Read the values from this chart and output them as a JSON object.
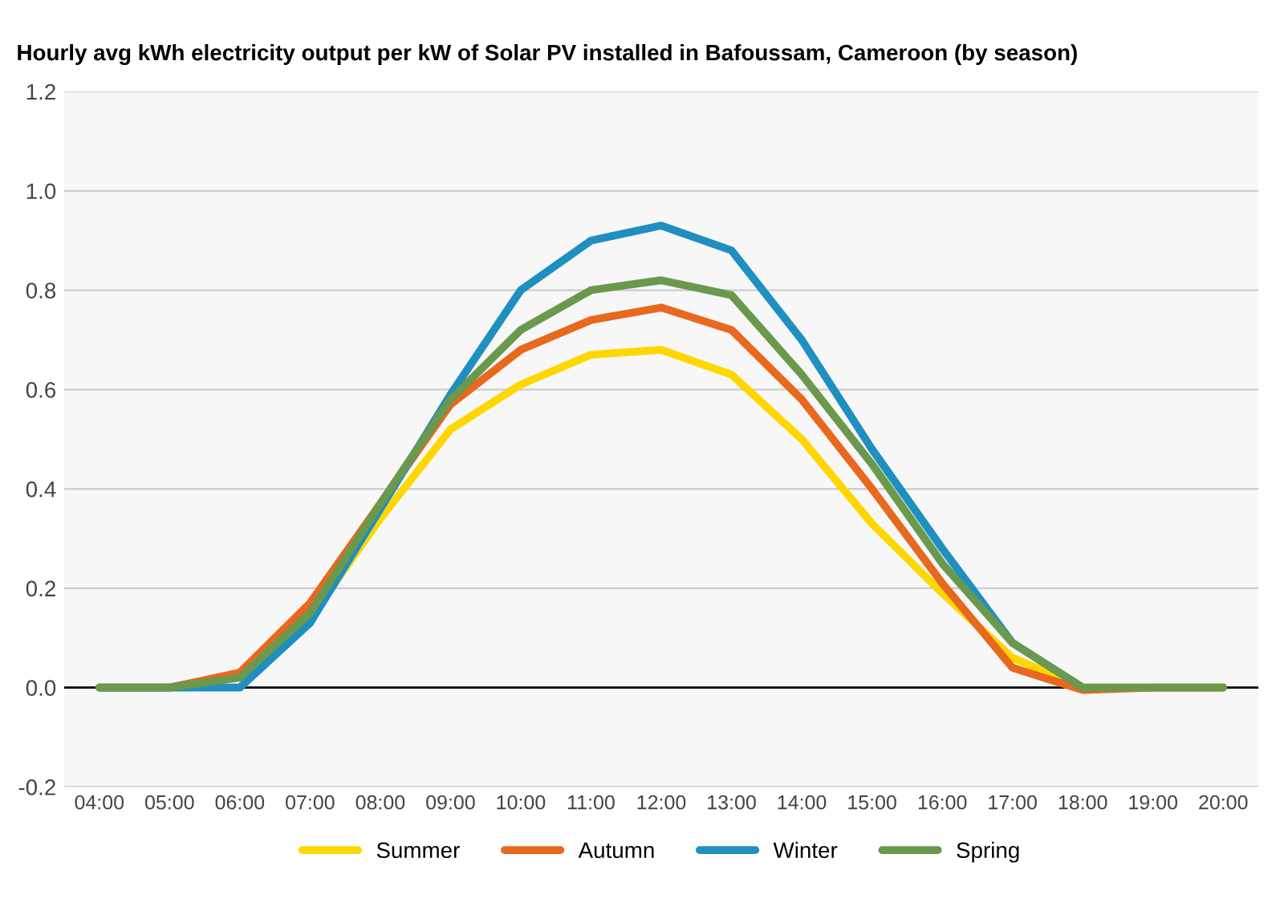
{
  "chart_data": {
    "type": "line",
    "title": "Hourly avg kWh electricity output per kW of Solar PV installed in Bafoussam, Cameroon (by season)",
    "x": [
      4,
      5,
      6,
      7,
      8,
      9,
      10,
      11,
      12,
      13,
      14,
      15,
      16,
      17,
      18,
      19,
      20
    ],
    "series": [
      {
        "name": "Summer",
        "color": "#ffd700",
        "values": [
          null,
          null,
          0.02,
          0.14,
          0.34,
          0.52,
          0.61,
          0.67,
          0.68,
          0.63,
          0.5,
          0.33,
          0.19,
          0.06,
          0.0,
          0,
          0
        ]
      },
      {
        "name": "Autumn",
        "color": "#e8681e",
        "values": [
          0,
          0,
          0.03,
          0.17,
          0.37,
          0.57,
          0.68,
          0.74,
          0.765,
          0.72,
          0.58,
          0.4,
          0.21,
          0.04,
          -0.005,
          0,
          0
        ]
      },
      {
        "name": "Winter",
        "color": "#1f8fc0",
        "values": [
          0,
          0,
          0.0,
          0.13,
          0.36,
          0.59,
          0.8,
          0.9,
          0.93,
          0.88,
          0.7,
          0.48,
          0.28,
          0.09,
          0.0,
          null,
          null
        ]
      },
      {
        "name": "Spring",
        "color": "#6a994e",
        "values": [
          0,
          0,
          0.02,
          0.15,
          0.37,
          0.58,
          0.72,
          0.8,
          0.82,
          0.79,
          0.63,
          0.45,
          0.25,
          0.09,
          0.0,
          0,
          0
        ]
      }
    ],
    "ylim": [
      -0.2,
      1.2
    ],
    "yticks": [
      -0.2,
      {
        "value": 0,
        "label": "0.0"
      },
      0.2,
      0.4,
      0.6,
      0.8,
      {
        "value": 1,
        "label": "1.0"
      },
      1.2
    ],
    "xlim": [
      3.5,
      20.5
    ],
    "xticks": [
      {
        "value": 4,
        "label": "04:00"
      },
      {
        "value": 5,
        "label": "05:00"
      },
      {
        "value": 6,
        "label": "06:00"
      },
      {
        "value": 7,
        "label": "07:00"
      },
      {
        "value": 8,
        "label": "08:00"
      },
      {
        "value": 9,
        "label": "09:00"
      },
      {
        "value": 10,
        "label": "10:00"
      },
      {
        "value": 11,
        "label": "11:00"
      },
      {
        "value": 12,
        "label": "12:00"
      },
      {
        "value": 13,
        "label": "13:00"
      },
      {
        "value": 14,
        "label": "14:00"
      },
      {
        "value": 15,
        "label": "15:00"
      },
      {
        "value": 16,
        "label": "16:00"
      },
      {
        "value": 17,
        "label": "17:00"
      },
      {
        "value": 18,
        "label": "18:00"
      },
      {
        "value": 19,
        "label": "19:00"
      },
      {
        "value": 20,
        "label": "20:00"
      }
    ],
    "ref_lines": [
      {
        "axis": "y",
        "value": 0,
        "color": "#000000"
      }
    ],
    "grid": "y",
    "legend": "bottom",
    "marker": "none",
    "line_style": "solid"
  }
}
